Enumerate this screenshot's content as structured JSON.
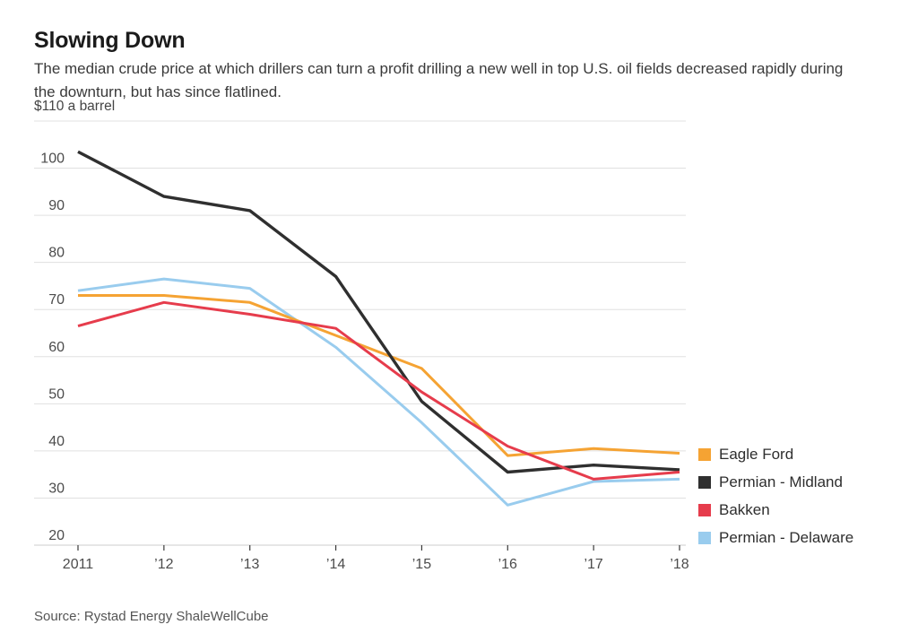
{
  "page": {
    "title": "Slowing Down",
    "subtitle": "The median crude price at which drillers can turn a profit drilling a new well in top U.S. oil fields decreased rapidly during the downturn, but has since flatlined.",
    "source": "Source: Rystad Energy ShaleWellCube"
  },
  "chart_data": {
    "type": "line",
    "title": "Slowing Down",
    "unit_label": "$110 a barrel",
    "xlabel": "",
    "ylabel": "$ a barrel",
    "x": [
      2011,
      2012,
      2013,
      2014,
      2015,
      2016,
      2017,
      2018
    ],
    "x_tick_labels": [
      "2011",
      "’12",
      "’13",
      "’14",
      "’15",
      "’16",
      "’17",
      "’18"
    ],
    "y_ticks": [
      20,
      30,
      40,
      50,
      60,
      70,
      80,
      90,
      100,
      110
    ],
    "ylim": [
      20,
      110
    ],
    "grid": "horizontal",
    "legend_position": "right",
    "colors": {
      "grid": "#e0e0e0",
      "axis": "#cccccc",
      "tick": "#3a3a3a",
      "tick_label": "#4c4c4c"
    },
    "series": [
      {
        "name": "Eagle Ford",
        "color": "#F5A333",
        "values": [
          73,
          73,
          71.5,
          64.5,
          57.5,
          39,
          40.5,
          39.5
        ]
      },
      {
        "name": "Permian - Midland",
        "color": "#2F2F2F",
        "values": [
          103.5,
          94,
          91,
          77,
          50.5,
          35.5,
          37,
          36
        ]
      },
      {
        "name": "Bakken",
        "color": "#E63C4C",
        "values": [
          66.5,
          71.5,
          69,
          66,
          52.5,
          41,
          34,
          35.5
        ]
      },
      {
        "name": "Permian - Delaware",
        "color": "#99CCEE",
        "values": [
          74,
          76.5,
          74.5,
          62,
          46,
          28.5,
          33.5,
          34
        ]
      }
    ],
    "draw_order": [
      3,
      0,
      1,
      2
    ]
  }
}
